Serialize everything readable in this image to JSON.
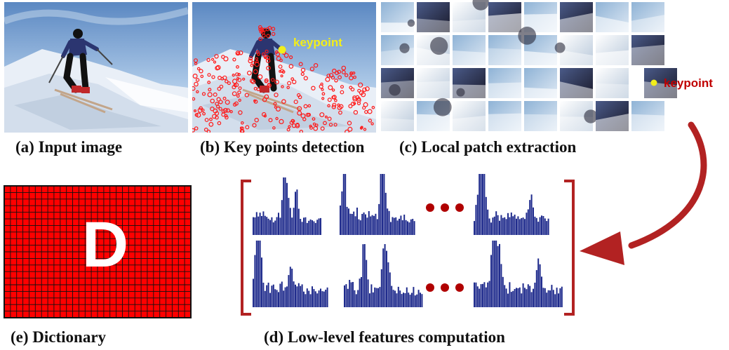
{
  "panels": {
    "a": {
      "caption": "(a) Input image"
    },
    "b": {
      "caption": "(b) Key points detection",
      "keypoint_label": "keypoint"
    },
    "c": {
      "caption": "(c) Local patch extraction",
      "keypoint_label": "keypoint"
    },
    "d": {
      "caption": "(d) Low-level features computation"
    },
    "e": {
      "caption": "(e) Dictionary",
      "letter": "D"
    }
  },
  "colors": {
    "keypoint_yellow": "#f2ee1a",
    "keypoint_red": "#c00000",
    "dictionary_red": "#ff0000",
    "histogram_blue": "#1e2a8c",
    "bracket_red": "#b22222",
    "sky": "#8fb3d6",
    "snow": "#eef2f7"
  },
  "icons": [
    "arrow-curved-icon",
    "ellipsis-icon",
    "bracket-icon"
  ]
}
